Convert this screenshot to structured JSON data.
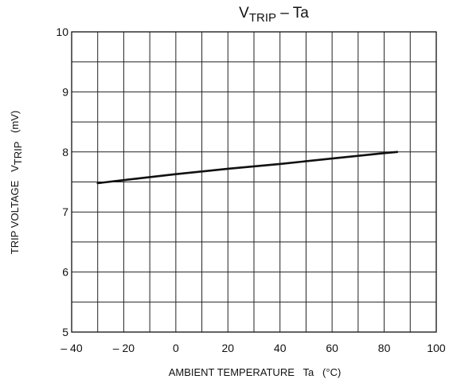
{
  "chart_data": {
    "type": "line",
    "title": {
      "main": "V",
      "subscript": "TRIP",
      "rest": " – Ta"
    },
    "xlabel": "AMBIENT TEMPERATURE   Ta   (°C)",
    "ylabel": {
      "pre": "TRIP VOLTAGE   V",
      "subscript": "TRIP",
      "post": "   (mV)"
    },
    "xlim": [
      -40,
      100
    ],
    "ylim": [
      5,
      10
    ],
    "x_ticks": [
      -40,
      -20,
      0,
      20,
      40,
      60,
      80,
      100
    ],
    "x_tick_labels": [
      "– 40",
      "– 20",
      "0",
      "20",
      "40",
      "60",
      "80",
      "100"
    ],
    "y_ticks": [
      5,
      6,
      7,
      8,
      9,
      10
    ],
    "y_tick_labels": [
      "5",
      "6",
      "7",
      "8",
      "9",
      "10"
    ],
    "x_minor_step": 10,
    "y_minor_step": 0.5,
    "grid": true,
    "series": [
      {
        "x": [
          -30,
          -20,
          0,
          20,
          40,
          60,
          80,
          85
        ],
        "y": [
          7.48,
          7.53,
          7.63,
          7.72,
          7.8,
          7.89,
          7.98,
          8.0
        ]
      }
    ]
  }
}
